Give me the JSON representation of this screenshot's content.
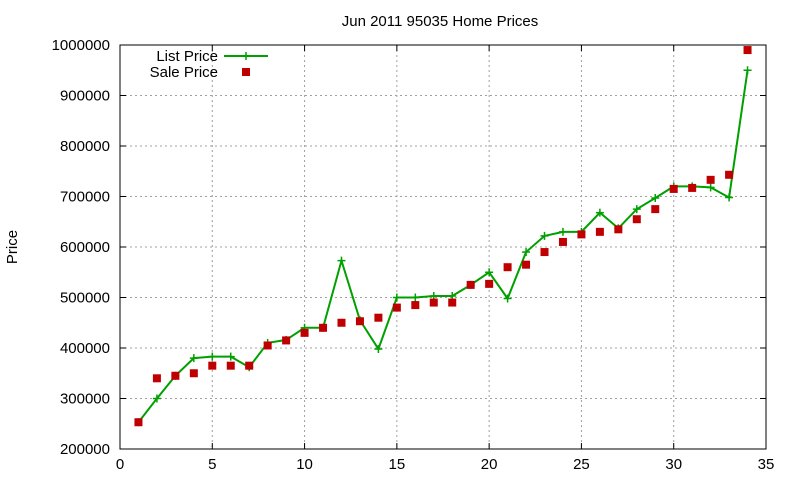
{
  "chart_data": {
    "type": "line",
    "title": "Jun 2011 95035 Home Prices",
    "xlabel": "",
    "ylabel": "Price",
    "xlim": [
      0,
      35
    ],
    "ylim": [
      200000,
      1000000
    ],
    "x_ticks": [
      0,
      5,
      10,
      15,
      20,
      25,
      30,
      35
    ],
    "y_ticks": [
      200000,
      300000,
      400000,
      500000,
      600000,
      700000,
      800000,
      900000,
      1000000
    ],
    "grid": true,
    "legend_position": "top-left",
    "series": [
      {
        "name": "List Price",
        "style": "line-with-plus-markers",
        "color": "#00a000",
        "x": [
          1,
          2,
          3,
          4,
          5,
          6,
          7,
          8,
          9,
          10,
          11,
          12,
          13,
          14,
          15,
          16,
          17,
          18,
          19,
          20,
          21,
          22,
          23,
          24,
          25,
          26,
          27,
          28,
          29,
          30,
          31,
          32,
          33,
          34
        ],
        "values": [
          253000,
          300000,
          345000,
          380000,
          383000,
          383000,
          362000,
          410000,
          416000,
          440000,
          440000,
          573000,
          455000,
          398000,
          500000,
          500000,
          503000,
          503000,
          525000,
          550000,
          498000,
          590000,
          622000,
          630000,
          630000,
          668000,
          637000,
          675000,
          697000,
          720000,
          720000,
          718000,
          698000,
          950000
        ]
      },
      {
        "name": "Sale Price",
        "style": "square-markers",
        "color": "#c00000",
        "x": [
          1,
          2,
          3,
          4,
          5,
          6,
          7,
          8,
          9,
          10,
          11,
          12,
          13,
          14,
          15,
          16,
          17,
          18,
          19,
          20,
          21,
          22,
          23,
          24,
          25,
          26,
          27,
          28,
          29,
          30,
          31,
          32,
          33,
          34
        ],
        "values": [
          253000,
          340000,
          345000,
          350000,
          365000,
          365000,
          365000,
          405000,
          415000,
          430000,
          440000,
          450000,
          453000,
          460000,
          480000,
          485000,
          490000,
          490000,
          525000,
          527000,
          560000,
          565000,
          590000,
          610000,
          625000,
          630000,
          635000,
          655000,
          675000,
          715000,
          717000,
          733000,
          743000,
          990000
        ]
      }
    ]
  }
}
